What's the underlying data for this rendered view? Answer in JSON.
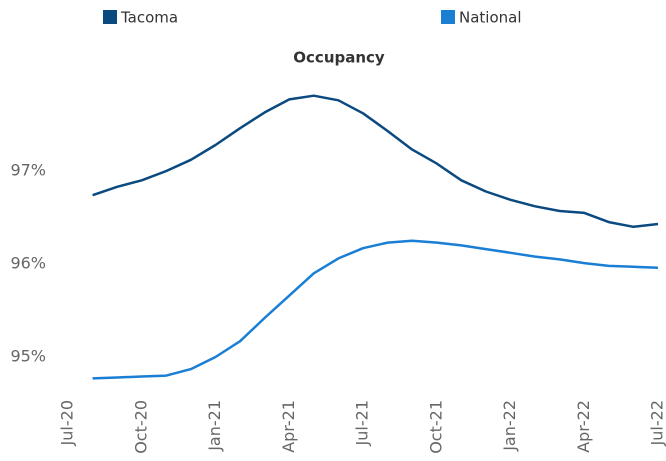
{
  "chart_data": {
    "type": "line",
    "title": "Occupancy",
    "categories": [
      "Jul-20",
      null,
      null,
      "Oct-20",
      null,
      null,
      "Jan-21",
      null,
      null,
      "Apr-21",
      null,
      null,
      "Jul-21",
      null,
      null,
      "Oct-21",
      null,
      null,
      "Jan-22",
      null,
      null,
      "Apr-22",
      null,
      null,
      "Jul-22"
    ],
    "series": [
      {
        "name": "Tacoma",
        "color": "#0b4a80",
        "values": [
          null,
          96.74,
          96.83,
          96.9,
          97.0,
          97.12,
          97.28,
          97.46,
          97.63,
          97.77,
          97.81,
          97.76,
          97.62,
          97.43,
          97.23,
          97.08,
          96.9,
          96.78,
          96.69,
          96.62,
          96.57,
          96.55,
          96.45,
          96.4,
          96.43
        ]
      },
      {
        "name": "National",
        "color": "#1a7fd4",
        "values": [
          null,
          94.77,
          94.78,
          94.79,
          94.8,
          94.87,
          95.0,
          95.17,
          95.42,
          95.66,
          95.9,
          96.06,
          96.17,
          96.23,
          96.25,
          96.23,
          96.2,
          96.16,
          96.12,
          96.08,
          96.05,
          96.01,
          95.98,
          95.97,
          95.96
        ]
      }
    ],
    "ylim": [
      94.8,
      98.0
    ],
    "yticks": [
      {
        "value": 95,
        "label": "95%"
      },
      {
        "value": 96,
        "label": "96%"
      },
      {
        "value": 97,
        "label": "97%"
      }
    ],
    "grid": false
  }
}
